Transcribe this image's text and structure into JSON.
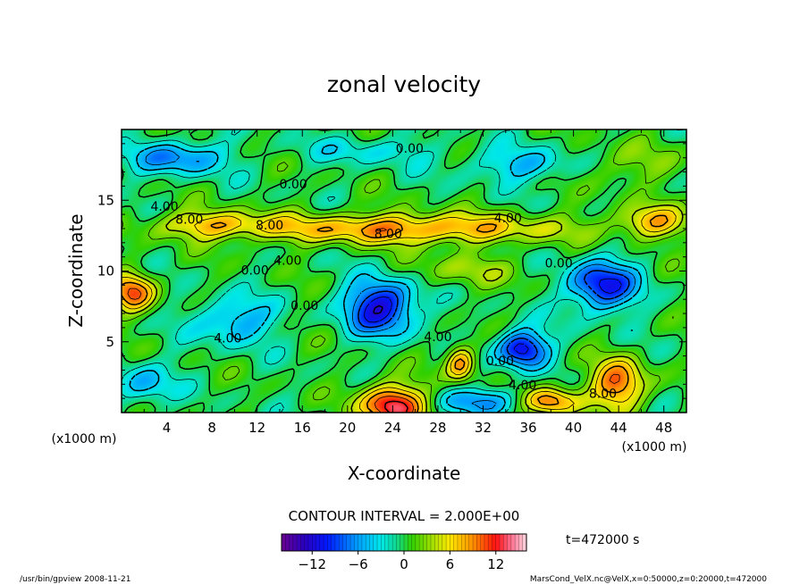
{
  "chart_data": {
    "type": "heatmap",
    "title": "zonal velocity",
    "xlabel": "X-coordinate",
    "ylabel": "Z-coordinate",
    "x_unit_label": "(x1000 m)",
    "y_unit_label": "(x1000 m)",
    "xlim": [
      0,
      50
    ],
    "ylim": [
      0,
      20
    ],
    "x_ticks": [
      4,
      8,
      12,
      16,
      20,
      24,
      28,
      32,
      36,
      40,
      44,
      48
    ],
    "y_ticks": [
      5,
      10,
      15
    ],
    "contour_interval_text": "CONTOUR INTERVAL = 2.000E+00",
    "contour_labels": [
      {
        "text": "0.00",
        "x": 25.5,
        "z": 18.6
      },
      {
        "text": "0.00",
        "x": 15.2,
        "z": 16.1
      },
      {
        "text": "4.00",
        "x": 3.8,
        "z": 14.5
      },
      {
        "text": "8.00",
        "x": 6.0,
        "z": 13.6
      },
      {
        "text": "8.00",
        "x": 13.1,
        "z": 13.2
      },
      {
        "text": "8.00",
        "x": 23.6,
        "z": 12.6
      },
      {
        "text": "4.00",
        "x": 34.2,
        "z": 13.7
      },
      {
        "text": "4.00",
        "x": 14.7,
        "z": 10.7
      },
      {
        "text": "0.00",
        "x": 11.8,
        "z": 10.0
      },
      {
        "text": "0.00",
        "x": 38.7,
        "z": 10.5
      },
      {
        "text": "0.00",
        "x": 16.2,
        "z": 7.5
      },
      {
        "text": "4.00",
        "x": 9.4,
        "z": 5.2
      },
      {
        "text": "4.00",
        "x": 28.0,
        "z": 5.3
      },
      {
        "text": "0.00",
        "x": 33.5,
        "z": 3.6
      },
      {
        "text": "4.00",
        "x": 35.5,
        "z": 1.9
      },
      {
        "text": "8.00",
        "x": 42.6,
        "z": 1.3
      }
    ],
    "features": [
      {
        "value": 9.0,
        "x": 25,
        "z": 13.0,
        "sx": 14,
        "sz": 1.1
      },
      {
        "value": 6.0,
        "x": 8,
        "z": 13.3,
        "sx": 5,
        "sz": 1.0
      },
      {
        "value": 7.0,
        "x": 47,
        "z": 13.5,
        "sx": 3,
        "sz": 1.2
      },
      {
        "value": -7.0,
        "x": 5,
        "z": 18.0,
        "sx": 4,
        "sz": 1.2
      },
      {
        "value": -3.0,
        "x": 22,
        "z": 18.5,
        "sx": 6,
        "sz": 1.0
      },
      {
        "value": -5.0,
        "x": 36,
        "z": 17.5,
        "sx": 5,
        "sz": 1.2
      },
      {
        "value": 3.0,
        "x": 44,
        "z": 17.5,
        "sx": 5,
        "sz": 1.5
      },
      {
        "value": -12.0,
        "x": 23,
        "z": 7.5,
        "sx": 3.0,
        "sz": 2.0
      },
      {
        "value": -11.0,
        "x": 42.5,
        "z": 9.0,
        "sx": 3.0,
        "sz": 1.8
      },
      {
        "value": -12.0,
        "x": 35.5,
        "z": 4.5,
        "sx": 2.2,
        "sz": 1.3
      },
      {
        "value": -6.0,
        "x": 10,
        "z": 6.5,
        "sx": 3.5,
        "sz": 1.6
      },
      {
        "value": -5.0,
        "x": 2,
        "z": 2.0,
        "sx": 2.5,
        "sz": 1.5
      },
      {
        "value": 14.0,
        "x": 24,
        "z": 0.5,
        "sx": 2.8,
        "sz": 1.5
      },
      {
        "value": 10.0,
        "x": 44,
        "z": 2.0,
        "sx": 2.5,
        "sz": 1.8
      },
      {
        "value": 10.0,
        "x": 1,
        "z": 8.5,
        "sx": 2.0,
        "sz": 1.4
      },
      {
        "value": 9.0,
        "x": 30,
        "z": 3.5,
        "sx": 1.3,
        "sz": 1.3
      },
      {
        "value": -6.0,
        "x": 32,
        "z": 0.8,
        "sx": 4,
        "sz": 1.0
      },
      {
        "value": 10.0,
        "x": 38,
        "z": 0.8,
        "sx": 2.5,
        "sz": 1.0
      },
      {
        "value": 3.0,
        "x": 30,
        "z": 10.0,
        "sx": 6,
        "sz": 1.2
      }
    ],
    "colorbar": {
      "min": -16,
      "max": 16,
      "ticks": [
        -12,
        -6,
        0,
        6,
        12
      ],
      "stops": [
        {
          "v": -16,
          "c": "#6a0090"
        },
        {
          "v": -13,
          "c": "#2a00c0"
        },
        {
          "v": -10,
          "c": "#0018ff"
        },
        {
          "v": -6,
          "c": "#00a0ff"
        },
        {
          "v": -3,
          "c": "#00e8e8"
        },
        {
          "v": -1,
          "c": "#10d890"
        },
        {
          "v": 1,
          "c": "#30d000"
        },
        {
          "v": 4,
          "c": "#b0e000"
        },
        {
          "v": 6,
          "c": "#ffe800"
        },
        {
          "v": 9,
          "c": "#ff9000"
        },
        {
          "v": 12,
          "c": "#ff1010"
        },
        {
          "v": 14,
          "c": "#ff7090"
        },
        {
          "v": 16,
          "c": "#ffd8e0"
        }
      ]
    }
  },
  "time_label": "t=472000 s",
  "footer_left": "/usr/bin/gpview   2008-11-21",
  "footer_right": "MarsCond_VelX.nc@VelX,x=0:50000,z=0:20000,t=472000"
}
